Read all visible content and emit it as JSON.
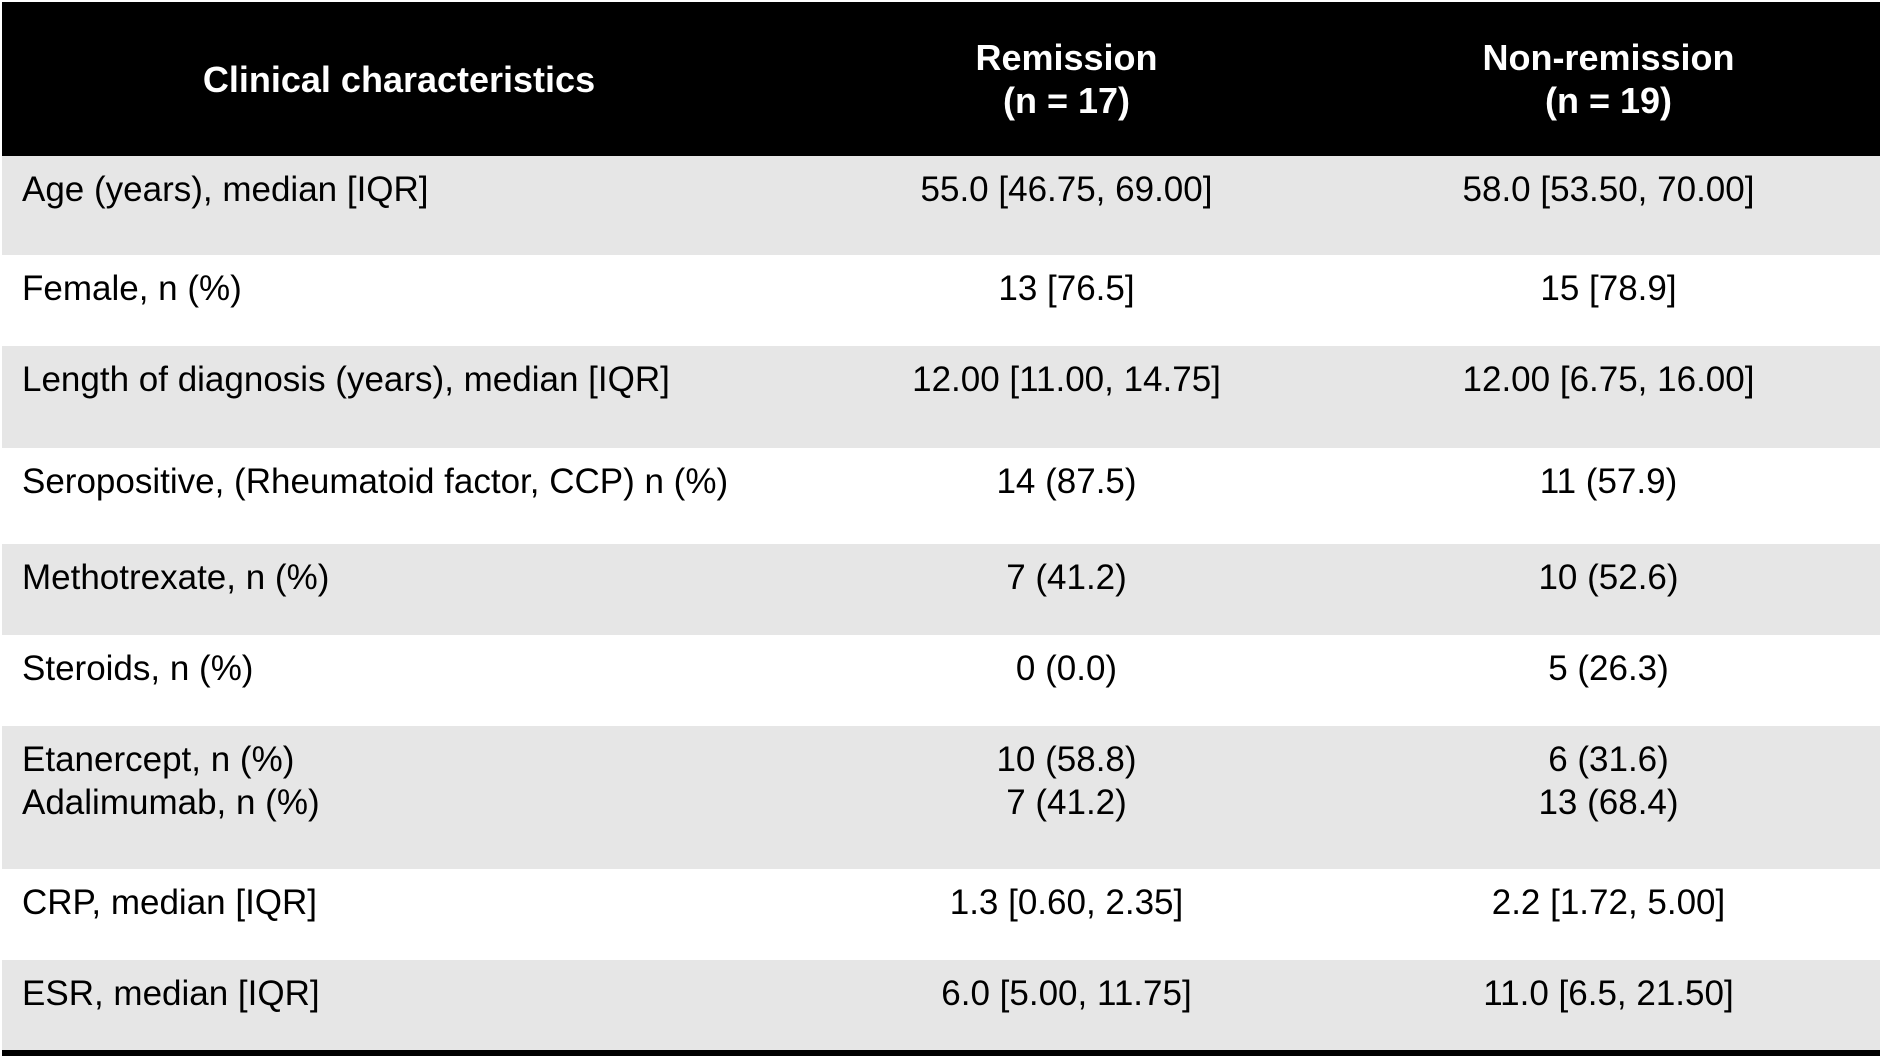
{
  "header": {
    "col1": "Clinical characteristics",
    "col2_line1": "Remission",
    "col2_line2": "(n = 17)",
    "col3_line1": "Non-remission",
    "col3_line2": "(n = 19)"
  },
  "rows": [
    {
      "label": [
        "Age (years), median [IQR]"
      ],
      "remission": [
        "55.0 [46.75, 69.00]"
      ],
      "non_remission": [
        "58.0 [53.50, 70.00]"
      ]
    },
    {
      "label": [
        "Female, n (%)"
      ],
      "remission": [
        "13 [76.5]"
      ],
      "non_remission": [
        "15 [78.9]"
      ]
    },
    {
      "label": [
        "Length of diagnosis (years), median [IQR]"
      ],
      "remission": [
        "12.00 [11.00, 14.75]"
      ],
      "non_remission": [
        "12.00 [6.75, 16.00]"
      ]
    },
    {
      "label": [
        "Seropositive, (Rheumatoid factor, CCP) n (%)"
      ],
      "remission": [
        "14 (87.5)"
      ],
      "non_remission": [
        "11 (57.9)"
      ]
    },
    {
      "label": [
        "Methotrexate, n (%)"
      ],
      "remission": [
        "7 (41.2)"
      ],
      "non_remission": [
        "10 (52.6)"
      ]
    },
    {
      "label": [
        "Steroids, n (%)"
      ],
      "remission": [
        "0 (0.0)"
      ],
      "non_remission": [
        "5 (26.3)"
      ]
    },
    {
      "label": [
        "Etanercept, n (%)",
        "Adalimumab, n (%)"
      ],
      "remission": [
        "10 (58.8)",
        "7 (41.2)"
      ],
      "non_remission": [
        "6 (31.6)",
        "13 (68.4)"
      ]
    },
    {
      "label": [
        "CRP, median [IQR]"
      ],
      "remission": [
        "1.3 [0.60, 2.35]"
      ],
      "non_remission": [
        "2.2 [1.72, 5.00]"
      ]
    },
    {
      "label": [
        "ESR, median [IQR]"
      ],
      "remission": [
        "6.0 [5.00, 11.75]"
      ],
      "non_remission": [
        "11.0 [6.5, 21.50]"
      ]
    }
  ]
}
